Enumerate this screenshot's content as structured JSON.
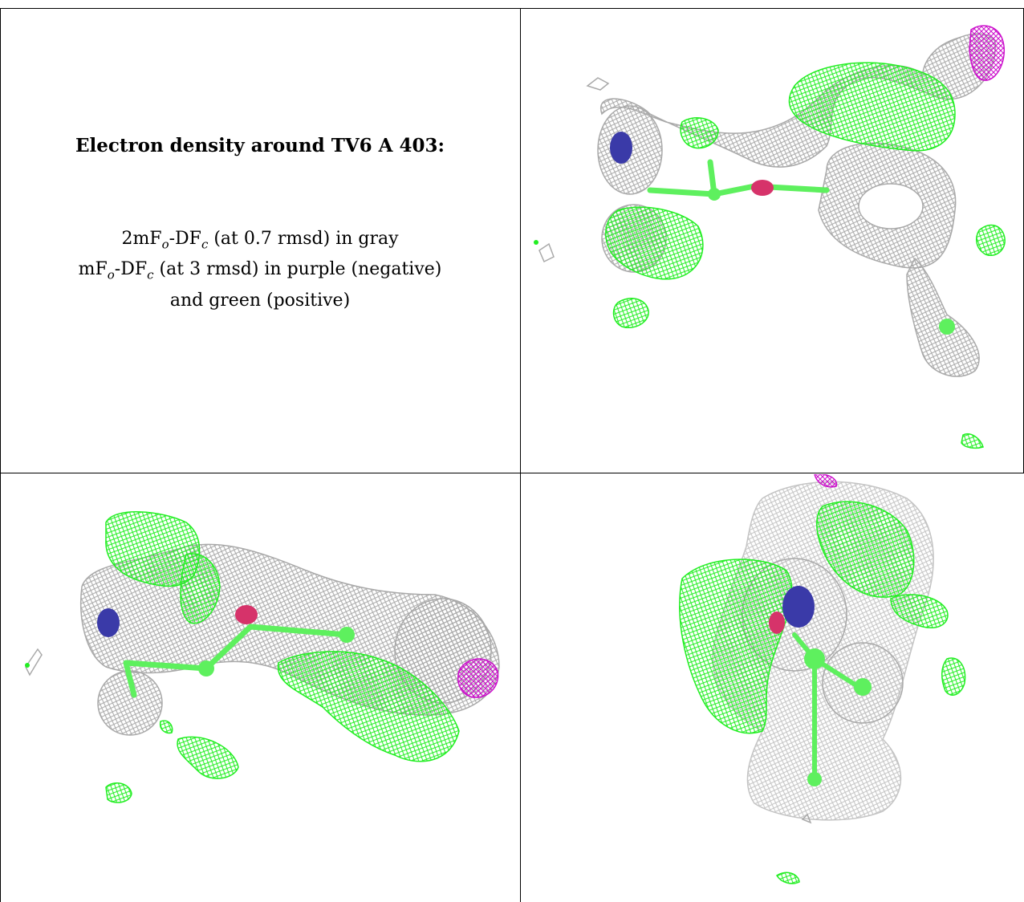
{
  "caption": {
    "heading": "Electron density around TV6 A 403:",
    "line1": {
      "prefix": "2mF",
      "sub1": "o",
      "mid": "-DF",
      "sub2": "c",
      "suffix": " (at 0.7 rmsd) in gray"
    },
    "line2": {
      "prefix": "mF",
      "sub1": "o",
      "mid": "-DF",
      "sub2": "c",
      "suffix": " (at 3 rmsd) in purple (negative)"
    },
    "line3": "and green (positive)"
  },
  "colors": {
    "positive": "#22ee22",
    "negative": "#cc10cc",
    "twofofc": "#a9a9a9",
    "nitrogen": "#3a3aa8",
    "oxygen": "#d6336a",
    "carbon": "#5ef05e"
  },
  "panels": [
    {
      "view": "top-right"
    },
    {
      "view": "bottom-left"
    },
    {
      "view": "bottom-right"
    }
  ]
}
